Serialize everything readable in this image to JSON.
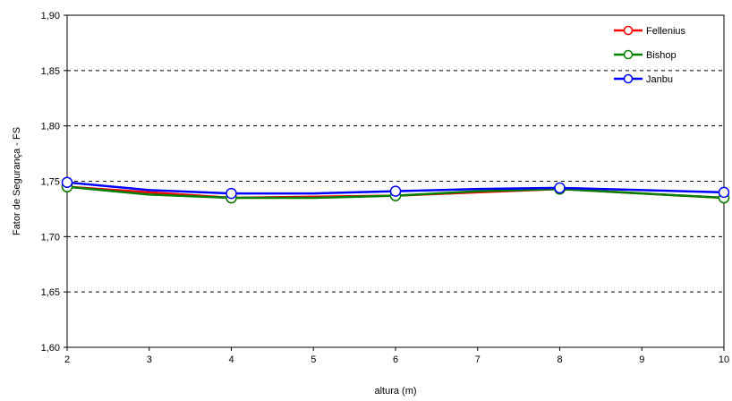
{
  "chart_data": {
    "type": "line",
    "title": "",
    "xlabel": "altura (m)",
    "ylabel": "Fator de Segurança - FS",
    "xlim": [
      2,
      10
    ],
    "ylim": [
      1.6,
      1.9
    ],
    "x_ticks": [
      "2",
      "3",
      "4",
      "5",
      "6",
      "7",
      "8",
      "9",
      "10"
    ],
    "y_ticks": [
      "1,60",
      "1,65",
      "1,70",
      "1,75",
      "1,80",
      "1,85",
      "1,90"
    ],
    "grid": "horizontal-dashed",
    "legend_position": "top-right",
    "series": [
      {
        "name": "Fellenius",
        "color": "#ff0000",
        "x": [
          2,
          4,
          6,
          8,
          10
        ],
        "y": [
          1.745,
          1.735,
          1.737,
          1.743,
          1.735
        ],
        "marker_x": [
          2,
          4,
          6,
          8,
          10
        ],
        "marker_y": [
          1.745,
          1.735,
          1.737,
          1.743,
          1.735
        ]
      },
      {
        "name": "Bishop",
        "color": "#008000",
        "x": [
          2,
          3,
          4,
          5,
          6,
          7,
          8,
          9,
          10
        ],
        "y": [
          1.745,
          1.738,
          1.735,
          1.735,
          1.737,
          1.741,
          1.743,
          1.739,
          1.735
        ],
        "marker_x": [
          2,
          4,
          6,
          8,
          10
        ],
        "marker_y": [
          1.745,
          1.735,
          1.737,
          1.743,
          1.735
        ]
      },
      {
        "name": "Janbu",
        "color": "#0000ff",
        "x": [
          2,
          3,
          4,
          5,
          6,
          7,
          8,
          9,
          10
        ],
        "y": [
          1.749,
          1.742,
          1.739,
          1.739,
          1.741,
          1.743,
          1.744,
          1.742,
          1.74
        ],
        "marker_x": [
          2,
          4,
          6,
          8,
          10
        ],
        "marker_y": [
          1.749,
          1.739,
          1.741,
          1.744,
          1.74
        ]
      }
    ]
  }
}
